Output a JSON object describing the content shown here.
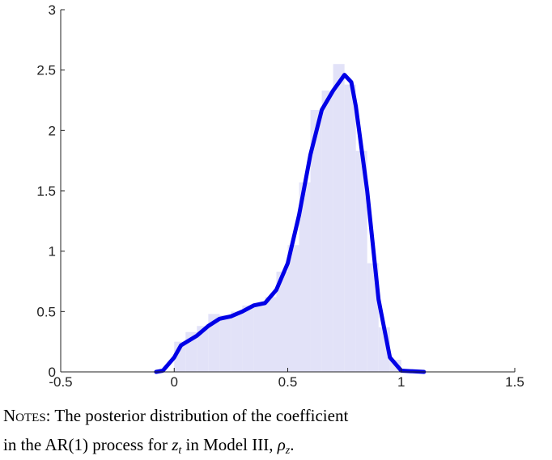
{
  "chart_data": {
    "type": "histogram",
    "bins": [
      0,
      0.05,
      0.1,
      0.15,
      0.2,
      0.25,
      0.3,
      0.35,
      0.4,
      0.45,
      0.5,
      0.55,
      0.6,
      0.65,
      0.7,
      0.75,
      0.8,
      0.85,
      0.9,
      0.95,
      1.0
    ],
    "values": [
      0.25,
      0.33,
      0.38,
      0.48,
      0.47,
      0.5,
      0.55,
      0.57,
      0.62,
      0.83,
      1.05,
      1.57,
      2.17,
      2.33,
      2.55,
      2.38,
      1.83,
      0.9,
      0.37,
      0.1
    ],
    "color": "#e2e2f8",
    "density": {
      "type": "line",
      "color": "#0000e6",
      "x": [
        -0.08,
        -0.05,
        0,
        0.03,
        0.1,
        0.15,
        0.2,
        0.25,
        0.3,
        0.35,
        0.4,
        0.45,
        0.5,
        0.55,
        0.6,
        0.65,
        0.7,
        0.75,
        0.78,
        0.8,
        0.85,
        0.9,
        0.95,
        1.0,
        1.1
      ],
      "values": [
        0,
        0.01,
        0.12,
        0.22,
        0.3,
        0.38,
        0.44,
        0.46,
        0.5,
        0.55,
        0.57,
        0.68,
        0.9,
        1.3,
        1.8,
        2.17,
        2.33,
        2.46,
        2.4,
        2.2,
        1.5,
        0.6,
        0.12,
        0.01,
        0
      ]
    },
    "xlim": [
      -0.5,
      1.5
    ],
    "xticks": [
      -0.5,
      0,
      0.5,
      1,
      1.5
    ],
    "ylim": [
      0,
      3
    ],
    "yticks": [
      0,
      0.5,
      1,
      1.5,
      2,
      2.5,
      3
    ]
  },
  "notes": {
    "label": "Notes:",
    "line1": "The posterior distribution of the coefficient",
    "line2": [
      "in the AR(1) process for ",
      "z",
      "t",
      " in Model III, ",
      "ρ",
      "z",
      "."
    ]
  }
}
